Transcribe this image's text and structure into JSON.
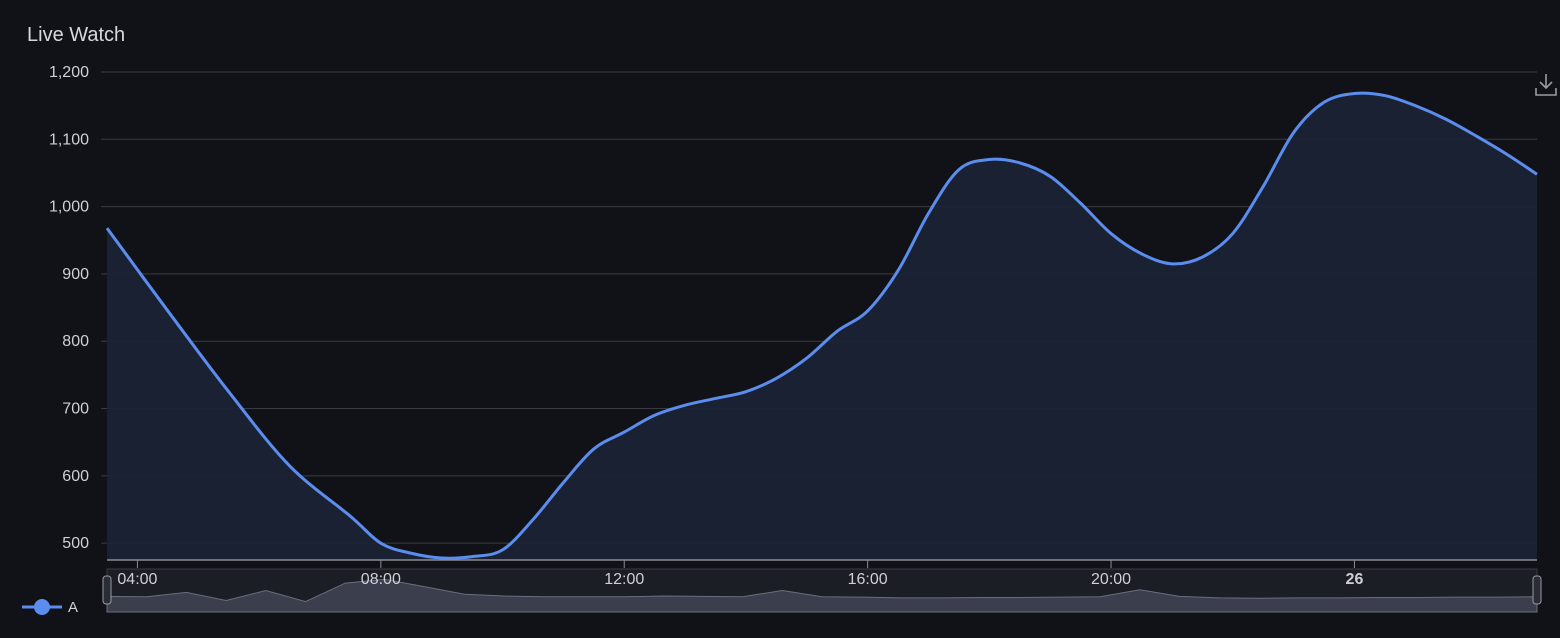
{
  "panel": {
    "title": "Live Watch"
  },
  "colors": {
    "line": "#5b8def",
    "fill": "#1b2335",
    "grid": "#3a3c45",
    "text": "#cfd0d4",
    "background": "#111217"
  },
  "icons": {
    "download": "download-icon"
  },
  "legend": {
    "label": "A",
    "color": "#5b8def",
    "placement": "bottom-left"
  },
  "chart_data": {
    "type": "area",
    "title": "Live Watch",
    "xlabel": "",
    "ylabel": "",
    "ylim": [
      475,
      1200
    ],
    "grid": true,
    "yticks": [
      "1,200",
      "1,100",
      "1,000",
      "900",
      "800",
      "700",
      "600",
      "500"
    ],
    "xticks": [
      "04:00",
      "08:00",
      "12:00",
      "16:00",
      "20:00",
      "26"
    ],
    "series": [
      {
        "name": "A",
        "x": [
          "03:30",
          "04:30",
          "05:30",
          "06:30",
          "07:30",
          "08:00",
          "08:30",
          "09:00",
          "09:30",
          "10:00",
          "10:30",
          "11:00",
          "11:30",
          "12:00",
          "12:30",
          "13:00",
          "13:30",
          "14:00",
          "14:30",
          "15:00",
          "15:30",
          "16:00",
          "16:30",
          "17:00",
          "17:30",
          "18:00",
          "18:30",
          "19:00",
          "19:30",
          "20:00",
          "20:30",
          "21:00",
          "21:30",
          "22:00",
          "22:30",
          "23:00",
          "23:30",
          "00:00",
          "00:30",
          "01:00",
          "01:30",
          "02:00",
          "02:30",
          "03:00"
        ],
        "values": [
          968,
          845,
          725,
          615,
          540,
          500,
          485,
          478,
          480,
          490,
          535,
          590,
          640,
          665,
          690,
          705,
          715,
          725,
          745,
          775,
          815,
          845,
          905,
          990,
          1055,
          1070,
          1065,
          1045,
          1005,
          960,
          930,
          915,
          925,
          960,
          1030,
          1110,
          1155,
          1168,
          1165,
          1150,
          1130,
          1105,
          1078,
          1048
        ]
      }
    ]
  },
  "navigator": {
    "values": [
      0.34,
      0.33,
      0.45,
      0.23,
      0.5,
      0.2,
      0.7,
      0.8,
      0.6,
      0.4,
      0.35,
      0.33,
      0.33,
      0.33,
      0.35,
      0.34,
      0.33,
      0.5,
      0.33,
      0.32,
      0.3,
      0.3,
      0.31,
      0.31,
      0.32,
      0.33,
      0.52,
      0.34,
      0.3,
      0.29,
      0.3,
      0.3,
      0.31,
      0.31,
      0.32,
      0.32,
      0.33
    ]
  }
}
